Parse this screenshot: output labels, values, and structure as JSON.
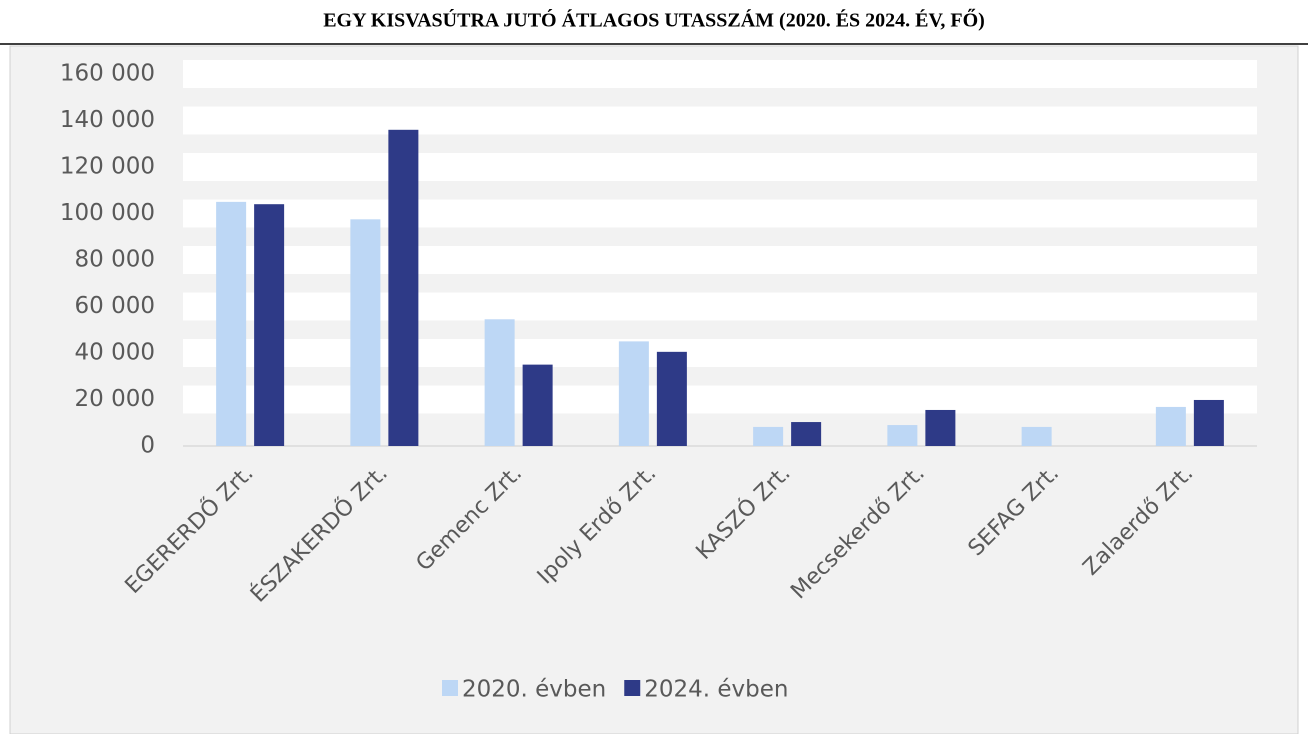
{
  "chart_data": {
    "type": "bar",
    "title": "EGY KISVASÚTRA JUTÓ ÁTLAGOS UTASSZÁM (2020. ÉS 2024. ÉV, FŐ)",
    "categories": [
      "EGERERDŐ Zrt.",
      "ÉSZAKERDŐ Zrt.",
      "Gemenc Zrt.",
      "Ipoly Erdő Zrt.",
      "KASZÓ Zrt.",
      "Mecsekerdő Zrt.",
      "SEFAG Zrt.",
      "Zalaerdő Zrt."
    ],
    "series": [
      {
        "name": "2020. évben",
        "color": "#bdd7f5",
        "values": [
          105000,
          97500,
          54500,
          45000,
          8200,
          9000,
          8200,
          16800
        ]
      },
      {
        "name": "2024. évben",
        "color": "#2e3a87",
        "values": [
          104000,
          136000,
          35000,
          40500,
          10300,
          15500,
          null,
          19800
        ]
      }
    ],
    "ylim": [
      0,
      160000
    ],
    "yticks": [
      0,
      {
        "value": 20000,
        "label": "20 000"
      },
      {
        "value": 40000,
        "label": "40 000"
      },
      {
        "value": 60000,
        "label": "60 000"
      },
      {
        "value": 80000,
        "label": "80 000"
      },
      {
        "value": 100000,
        "label": "100 000"
      },
      {
        "value": 120000,
        "label": "120 000"
      },
      {
        "value": 140000,
        "label": "140 000"
      },
      {
        "value": 160000,
        "label": "160 000"
      }
    ],
    "grid": true,
    "legend": "bottom"
  }
}
